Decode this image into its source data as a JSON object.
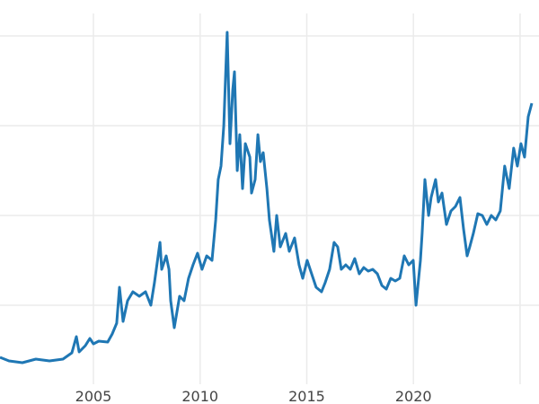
{
  "chart_data": {
    "type": "line",
    "title": "",
    "xlabel": "",
    "ylabel": "",
    "xlim": [
      2000.62,
      2025.55
    ],
    "ylim": [
      0,
      42.5
    ],
    "x_ticks": [
      2005,
      2010,
      2015,
      2020,
      2025
    ],
    "x_tick_labels": [
      "2005",
      "2010",
      "2015",
      "2020",
      ""
    ],
    "y_gridlines": [
      10,
      20,
      30,
      40
    ],
    "y_tick_labels_shown": false,
    "grid": true,
    "legend": "none",
    "color": "#1f77b4",
    "series": [
      {
        "x": [
          2000.62,
          2001.04,
          2001.67,
          2002.3,
          2002.94,
          2003.57,
          2003.99,
          2004.2,
          2004.33,
          2004.62,
          2004.83,
          2005.0,
          2005.25,
          2005.67,
          2005.88,
          2006.09,
          2006.22,
          2006.39,
          2006.6,
          2006.85,
          2007.15,
          2007.44,
          2007.69,
          2007.86,
          2008.12,
          2008.2,
          2008.41,
          2008.54,
          2008.62,
          2008.79,
          2009.04,
          2009.25,
          2009.46,
          2009.67,
          2009.88,
          2010.09,
          2010.31,
          2010.56,
          2010.73,
          2010.85,
          2010.98,
          2011.11,
          2011.27,
          2011.4,
          2011.53,
          2011.61,
          2011.74,
          2011.86,
          2011.99,
          2012.12,
          2012.33,
          2012.41,
          2012.58,
          2012.71,
          2012.83,
          2012.96,
          2013.13,
          2013.25,
          2013.46,
          2013.59,
          2013.76,
          2014.01,
          2014.18,
          2014.43,
          2014.64,
          2014.81,
          2015.02,
          2015.23,
          2015.44,
          2015.69,
          2015.86,
          2016.07,
          2016.28,
          2016.45,
          2016.62,
          2016.83,
          2017.04,
          2017.25,
          2017.46,
          2017.67,
          2017.88,
          2018.09,
          2018.31,
          2018.52,
          2018.73,
          2018.94,
          2019.15,
          2019.36,
          2019.57,
          2019.78,
          2019.99,
          2020.12,
          2020.33,
          2020.41,
          2020.54,
          2020.71,
          2020.83,
          2021.04,
          2021.17,
          2021.34,
          2021.55,
          2021.76,
          2021.97,
          2022.18,
          2022.35,
          2022.52,
          2022.64,
          2022.81,
          2023.02,
          2023.23,
          2023.44,
          2023.65,
          2023.86,
          2024.07,
          2024.28,
          2024.49,
          2024.7,
          2024.87,
          2025.04,
          2025.21,
          2025.38,
          2025.55
        ],
        "y": [
          4.2,
          3.8,
          3.6,
          4.0,
          3.8,
          4.0,
          4.7,
          6.5,
          4.8,
          5.5,
          6.3,
          5.7,
          6.0,
          5.9,
          6.8,
          8.0,
          12.0,
          8.2,
          10.5,
          11.5,
          11.0,
          11.5,
          10.0,
          12.5,
          17.0,
          14.0,
          15.5,
          14.0,
          10.5,
          7.5,
          11.0,
          10.5,
          13.0,
          14.5,
          15.8,
          14.0,
          15.5,
          15.0,
          19.5,
          24.0,
          25.5,
          30.0,
          40.4,
          28.0,
          34.0,
          36.0,
          25.0,
          29.0,
          23.0,
          28.0,
          26.5,
          22.5,
          24.0,
          29.0,
          26.0,
          27.0,
          23.0,
          19.5,
          16.0,
          20.0,
          16.5,
          18.0,
          16.0,
          17.5,
          14.5,
          13.0,
          15.0,
          13.5,
          12.0,
          11.5,
          12.5,
          14.0,
          17.0,
          16.5,
          14.0,
          14.5,
          14.0,
          15.2,
          13.5,
          14.2,
          13.8,
          14.0,
          13.5,
          12.2,
          11.8,
          13.0,
          12.7,
          13.0,
          15.5,
          14.5,
          15.0,
          10.0,
          15.0,
          18.0,
          24.0,
          20.0,
          22.0,
          24.0,
          21.5,
          22.5,
          19.0,
          20.5,
          21.0,
          22.0,
          18.5,
          15.5,
          16.5,
          18.0,
          20.2,
          20.0,
          19.0,
          20.0,
          19.5,
          20.5,
          25.5,
          23.0,
          27.5,
          25.5,
          28.0,
          26.5,
          31.0,
          32.5
        ]
      }
    ]
  }
}
